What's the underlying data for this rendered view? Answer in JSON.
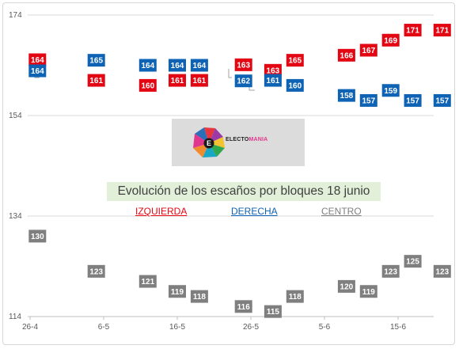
{
  "chart_data": {
    "type": "scatter",
    "title": "Evolución de los escaños por bloques 18 junio",
    "x_tick_labels": [
      "26-4",
      "6-5",
      "16-5",
      "26-5",
      "5-6",
      "15-6"
    ],
    "y_tick_labels": [
      "174",
      "154",
      "134",
      "114"
    ],
    "ylim": [
      114,
      174
    ],
    "grid": "horizontal",
    "legend": [
      "IZQUIERDA",
      "DERECHA",
      "CENTRO"
    ],
    "colors": {
      "izquierda": "#e30613",
      "derecha": "#0e63b4",
      "centro": "#7f7f7f"
    },
    "series": [
      {
        "name": "IZQUIERDA",
        "points": [
          {
            "date": "27-4",
            "value": 164
          },
          {
            "date": "5-5",
            "value": 161
          },
          {
            "date": "12-5",
            "value": 160
          },
          {
            "date": "16-5",
            "value": 161
          },
          {
            "date": "19-5",
            "value": 161
          },
          {
            "date": "25-5",
            "value": 163
          },
          {
            "date": "29-5",
            "value": 163
          },
          {
            "date": "1-6",
            "value": 165
          },
          {
            "date": "8-6",
            "value": 166
          },
          {
            "date": "11-6",
            "value": 167
          },
          {
            "date": "14-6",
            "value": 169
          },
          {
            "date": "17-6",
            "value": 171
          },
          {
            "date": "21-6",
            "value": 171
          }
        ]
      },
      {
        "name": "DERECHA",
        "points": [
          {
            "date": "27-4",
            "value": 164
          },
          {
            "date": "5-5",
            "value": 165
          },
          {
            "date": "12-5",
            "value": 164
          },
          {
            "date": "16-5",
            "value": 164
          },
          {
            "date": "19-5",
            "value": 164
          },
          {
            "date": "25-5",
            "value": 162
          },
          {
            "date": "29-5",
            "value": 161
          },
          {
            "date": "1-6",
            "value": 160
          },
          {
            "date": "8-6",
            "value": 158
          },
          {
            "date": "11-6",
            "value": 157
          },
          {
            "date": "14-6",
            "value": 159
          },
          {
            "date": "17-6",
            "value": 157
          },
          {
            "date": "21-6",
            "value": 157
          }
        ]
      },
      {
        "name": "CENTRO",
        "points": [
          {
            "date": "27-4",
            "value": 130
          },
          {
            "date": "5-5",
            "value": 123
          },
          {
            "date": "12-5",
            "value": 121
          },
          {
            "date": "16-5",
            "value": 119
          },
          {
            "date": "19-5",
            "value": 118
          },
          {
            "date": "25-5",
            "value": 116
          },
          {
            "date": "29-5",
            "value": 115
          },
          {
            "date": "1-6",
            "value": 118
          },
          {
            "date": "8-6",
            "value": 120
          },
          {
            "date": "11-6",
            "value": 119
          },
          {
            "date": "14-6",
            "value": 123
          },
          {
            "date": "17-6",
            "value": 125
          },
          {
            "date": "21-6",
            "value": 123
          }
        ]
      }
    ]
  },
  "logo": {
    "text_main": "ELECTO",
    "text_accent": "MANIA",
    "letter": "E"
  }
}
